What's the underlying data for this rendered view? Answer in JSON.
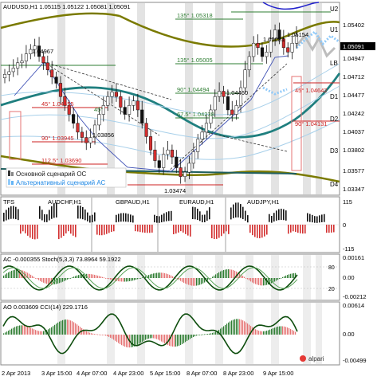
{
  "main_panel": {
    "header": "AUDUSD,H1  1.05115 1.05122 1.05081 1.05091",
    "price_labels": [
      "1.05402",
      "1.05091",
      "1.04947",
      "1.04712",
      "1.04477",
      "1.04242",
      "1.04037",
      "1.03802",
      "1.03577",
      "1.03347"
    ],
    "level_labels": [
      "U2",
      "U1",
      "LB",
      "D1",
      "D2",
      "D3",
      "D4"
    ],
    "annotations": [
      "1.04967",
      "135° 1.05318",
      "135° 1.05005",
      "1.05081",
      "1.05154",
      "90° 1.04494",
      "1.04460",
      "45° 1.04455",
      "45°",
      "67.5° 1.04238",
      "90° 1.03945",
      "1.03856",
      "112.5° 1.03690",
      "1.03474",
      "45° 1.04642",
      "90° 1.04131"
    ],
    "legend": [
      "Основной сценарий ОС",
      "Альтернативный сценарий АС"
    ],
    "current_price": "1.05091"
  },
  "ts_panel": {
    "label": "TFS",
    "sub_labels": [
      "AUDCHF,H1",
      "GBPAUD,H1",
      "EURAUD,H1",
      "AUDJPY,H1"
    ],
    "scale": [
      "115",
      "0",
      "-115"
    ]
  },
  "ac_panel": {
    "label": "AC -0.000355  Stoch(5,3,3) 73.8964 59.1922",
    "scale": [
      "0.00161",
      "0.00",
      "-0.00212",
      "80",
      "20"
    ]
  },
  "ao_panel": {
    "label": "AO 0.003609  CCI(14) 229.1716",
    "scale": [
      "0.00614",
      "0.00",
      "-0.00499"
    ],
    "brand": "alpari"
  },
  "x_axis": [
    "2 Apr 2013",
    "3 Apr 15:00",
    "4 Apr 07:00",
    "4 Apr 23:00",
    "5 Apr 15:00",
    "8 Apr 07:00",
    "8 Apr 23:00",
    "9 Apr 15:00"
  ],
  "chart_data": {
    "type": "candlestick",
    "symbol": "AUDUSD",
    "timeframe": "H1",
    "ylim": [
      1.033,
      1.0545
    ],
    "values": [
      1.0465,
      1.0468,
      1.0472,
      1.0478,
      1.048,
      1.0488,
      1.0493,
      1.0497,
      1.0485,
      1.0478,
      1.047,
      1.0462,
      1.0455,
      1.044,
      1.043,
      1.042,
      1.041,
      1.04,
      1.0394,
      1.0388,
      1.0394,
      1.0408,
      1.042,
      1.043,
      1.044,
      1.0445,
      1.044,
      1.0428,
      1.042,
      1.043,
      1.0435,
      1.0425,
      1.041,
      1.0395,
      1.038,
      1.0368,
      1.036,
      1.0375,
      1.038,
      1.0372,
      1.036,
      1.035,
      1.0355,
      1.0365,
      1.0378,
      1.0392,
      1.04,
      1.041,
      1.0425,
      1.044,
      1.0446,
      1.044,
      1.0425,
      1.042,
      1.043,
      1.045,
      1.047,
      1.0485,
      1.05,
      1.0495,
      1.0485,
      1.049,
      1.0505,
      1.0515,
      1.0505,
      1.0495,
      1.049,
      1.05,
      1.0509
    ]
  }
}
